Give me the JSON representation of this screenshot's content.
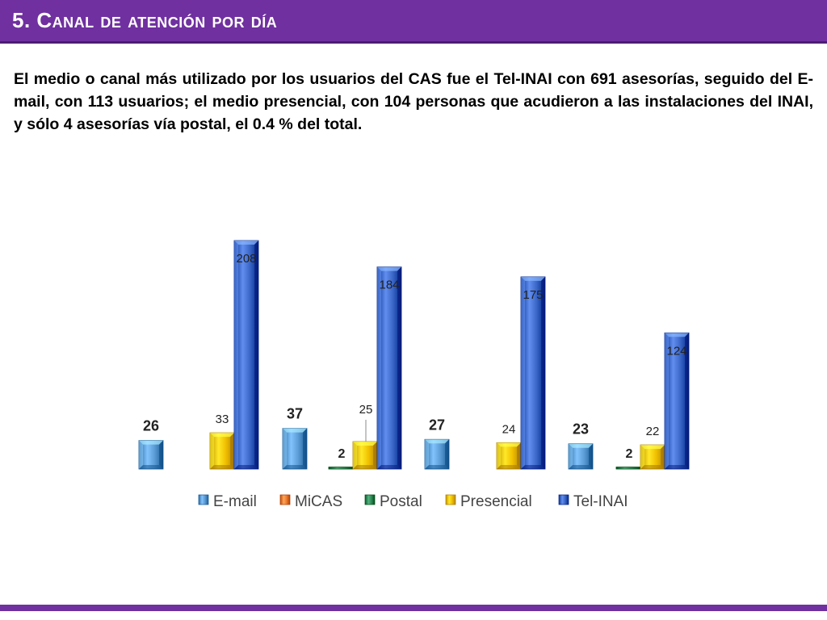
{
  "header": {
    "title": "5. Canal de atención por día"
  },
  "body": {
    "paragraph": "El medio o canal más utilizado por los usuarios del CAS fue el Tel-INAI con 691 asesorías, seguido del E-mail, con 113 usuarios; el medio presencial, con 104 personas que acudieron a las instalaciones del INAI, y sólo 4 asesorías vía postal, el 0.4 % del total."
  },
  "chart_data": {
    "type": "bar",
    "title": "",
    "xlabel": "",
    "ylabel": "",
    "grid": false,
    "legend_position": "bottom",
    "categories": [
      "",
      "",
      "",
      ""
    ],
    "series": [
      {
        "name": "E-mail",
        "values": [
          26,
          37,
          27,
          23
        ],
        "color": "#5b9bd5"
      },
      {
        "name": "MiCAS",
        "values": [
          0,
          0,
          0,
          0
        ],
        "color": "#ed7d31"
      },
      {
        "name": "Postal",
        "values": [
          0,
          2,
          0,
          2
        ],
        "color": "#2e8b57"
      },
      {
        "name": "Presencial",
        "values": [
          33,
          25,
          24,
          22
        ],
        "color": "#f0c000"
      },
      {
        "name": "Tel-INAI",
        "values": [
          208,
          184,
          175,
          124
        ],
        "color": "#3a66c8"
      }
    ],
    "data_labels": {
      "E-mail": [
        "26",
        "37",
        "27",
        "23"
      ],
      "Postal": [
        null,
        "2",
        null,
        "2"
      ],
      "Presencial": [
        "33",
        "25",
        "24",
        "22"
      ],
      "Tel-INAI": [
        "208",
        "184",
        "175",
        "124"
      ]
    }
  }
}
